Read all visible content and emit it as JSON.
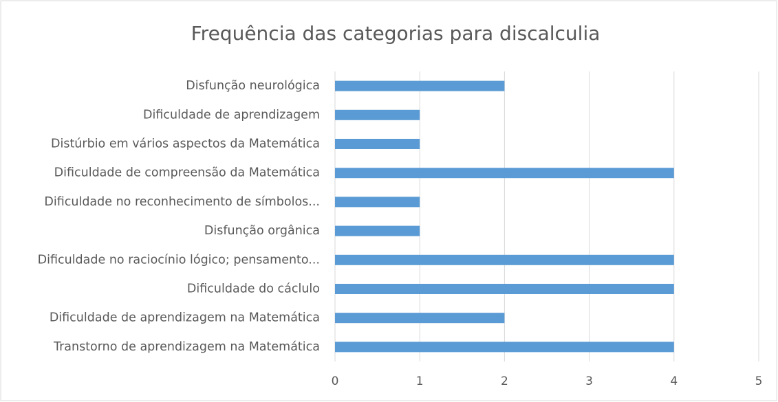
{
  "chart_data": {
    "type": "barh",
    "title": "Frequência das categorias para discalculia",
    "categories": [
      "Disfunção neurológica",
      "Dificuldade de aprendizagem",
      "Distúrbio em vários aspectos da Matemática",
      "Dificuldade de compreensão da Matemática",
      "Dificuldade no reconhecimento de símbolos...",
      "Disfunção orgânica",
      "Dificuldade no raciocínio lógico; pensamento...",
      "Dificuldade do cáclulo",
      "Dificuldade de aprendizagem na Matemática",
      "Transtorno de aprendizagem na Matemática"
    ],
    "values": [
      2,
      1,
      1,
      4,
      1,
      1,
      4,
      4,
      2,
      4
    ],
    "color": "#5b9bd5",
    "xlim": [
      0,
      5
    ],
    "xticks": [
      0,
      1,
      2,
      3,
      4,
      5
    ],
    "grid": true
  }
}
